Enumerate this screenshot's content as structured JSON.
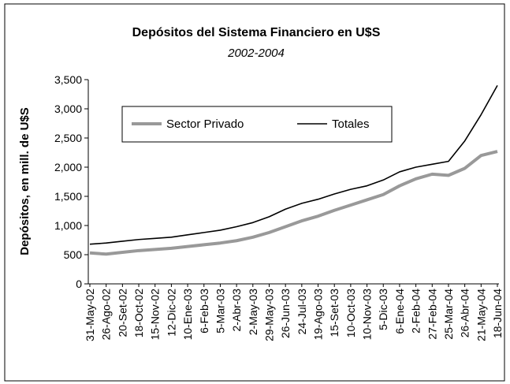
{
  "chart_data": {
    "type": "line",
    "title": "Depósitos del Sistema Financiero en U$S",
    "subtitle": "2002-2004",
    "y_label": "Depósitos, en mill. de U$S",
    "categories": [
      "31-May-02",
      "26-Ago-02",
      "20-Set-02",
      "18-Oct-02",
      "15-Nov-02",
      "12-Dic-02",
      "10-Ene-03",
      "6-Feb-03",
      "5-Mar-03",
      "2-Abr-03",
      "2-May-03",
      "29-May-03",
      "26-Jun-03",
      "24-Jul-03",
      "19-Ago-03",
      "15-Set-03",
      "10-Oct-03",
      "10-Nov-03",
      "5-Dic-03",
      "6-Ene-04",
      "2-Feb-04",
      "27-Feb-04",
      "25-Mar-04",
      "26-Abr-04",
      "21-May-04",
      "18-Jun-04"
    ],
    "series": [
      {
        "name": "Sector Privado",
        "color": "#999999",
        "values": [
          530,
          510,
          540,
          570,
          590,
          610,
          640,
          670,
          700,
          740,
          800,
          880,
          980,
          1080,
          1160,
          1260,
          1350,
          1440,
          1530,
          1680,
          1800,
          1880,
          1860,
          1980,
          2200,
          2270
        ]
      },
      {
        "name": "Totales",
        "color": "#000000",
        "values": [
          680,
          700,
          730,
          760,
          780,
          800,
          840,
          880,
          920,
          980,
          1050,
          1150,
          1280,
          1380,
          1450,
          1540,
          1620,
          1680,
          1780,
          1920,
          2000,
          2050,
          2100,
          2450,
          2900,
          3400
        ]
      }
    ],
    "ylim": [
      0,
      3500
    ],
    "yticks": [
      0,
      500,
      {
        "value": 1000,
        "label": "1,000"
      },
      {
        "value": 1500,
        "label": "1,500"
      },
      {
        "value": 2000,
        "label": "2,000"
      },
      {
        "value": 2500,
        "label": "2,500"
      },
      {
        "value": 3000,
        "label": "3,000"
      },
      {
        "value": 3500,
        "label": "3,500"
      }
    ],
    "legend": "upper left"
  }
}
